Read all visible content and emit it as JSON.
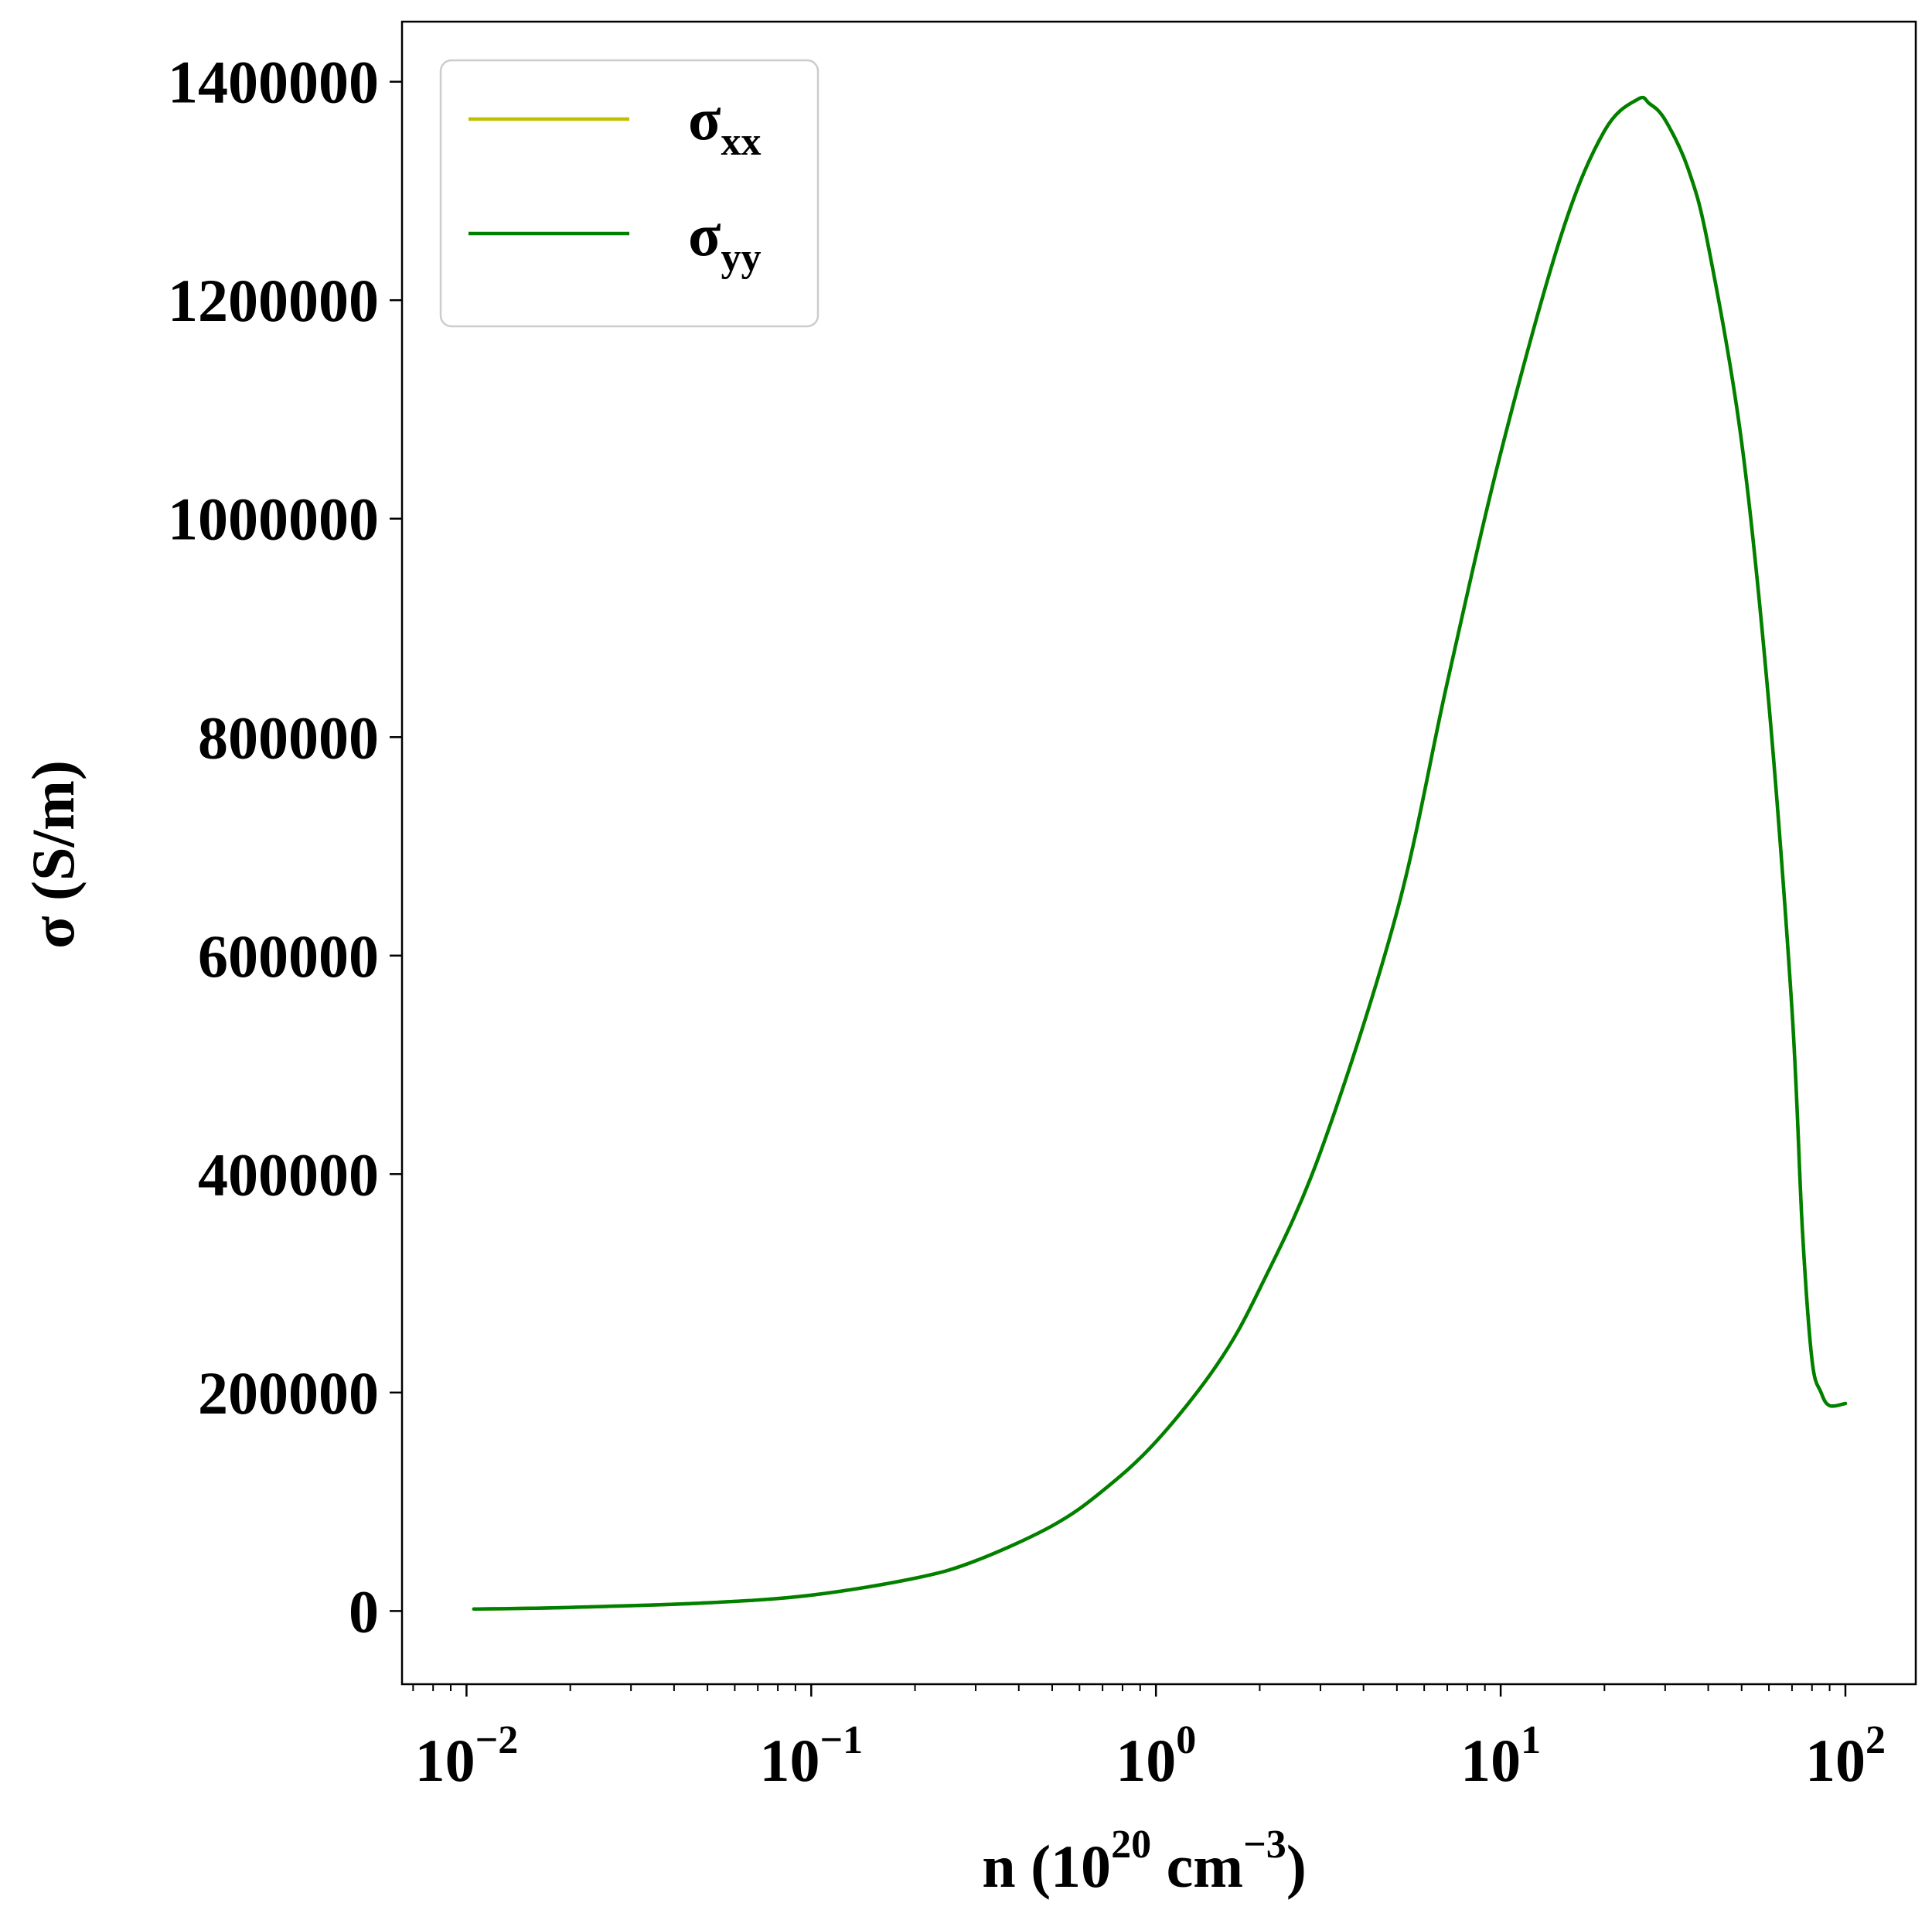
{
  "chart_data": {
    "type": "line",
    "title": "",
    "xlabel": {
      "base": "n (10",
      "sup1": "20",
      "mid": " cm",
      "sup2": "−3",
      "end": ")"
    },
    "ylabel": "σ (S/m)",
    "xscale": "log",
    "xlim": [
      0.0065,
      160
    ],
    "ylim": [
      -67000,
      1455000
    ],
    "x_ticks": [
      {
        "value": 0.01,
        "base": "10",
        "exp": "−2"
      },
      {
        "value": 0.1,
        "base": "10",
        "exp": "−1"
      },
      {
        "value": 1,
        "base": "10",
        "exp": "0"
      },
      {
        "value": 10,
        "base": "10",
        "exp": "1"
      },
      {
        "value": 100,
        "base": "10",
        "exp": "2"
      }
    ],
    "y_ticks": [
      {
        "value": 0,
        "label": "0"
      },
      {
        "value": 200000,
        "label": "200000"
      },
      {
        "value": 400000,
        "label": "400000"
      },
      {
        "value": 600000,
        "label": "600000"
      },
      {
        "value": 800000,
        "label": "800000"
      },
      {
        "value": 1000000,
        "label": "1000000"
      },
      {
        "value": 1200000,
        "label": "1200000"
      },
      {
        "value": 1400000,
        "label": "1400000"
      }
    ],
    "grid": false,
    "legend": "top-left",
    "series": [
      {
        "name": "σxx",
        "name_base": "σ",
        "name_sub": "xx",
        "color": "#bfbf00",
        "x": [
          0.0105,
          0.02,
          0.05,
          0.1,
          0.2,
          0.3,
          0.5,
          0.7,
          1.0,
          1.5,
          2.0,
          3.0,
          5.0,
          7.0,
          10.0,
          15.0,
          20.0,
          25.0,
          27.0,
          30.0,
          35.0,
          40.0,
          50.0,
          60.0,
          70.0,
          75.0,
          80.0,
          85.0,
          90.0,
          100.0
        ],
        "y": [
          1800,
          3300,
          7500,
          14500,
          30000,
          46000,
          78000,
          110000,
          155000,
          225000,
          295000,
          420000,
          640000,
          850000,
          1060000,
          1260000,
          1355000,
          1384000,
          1380000,
          1365000,
          1320000,
          1250000,
          1070000,
          830000,
          550000,
          350000,
          230000,
          200000,
          188000,
          190000
        ]
      },
      {
        "name": "σyy",
        "name_base": "σ",
        "name_sub": "yy",
        "color": "#008000",
        "x": [
          0.0105,
          0.02,
          0.05,
          0.1,
          0.2,
          0.3,
          0.5,
          0.7,
          1.0,
          1.5,
          2.0,
          3.0,
          5.0,
          7.0,
          10.0,
          15.0,
          20.0,
          25.0,
          27.0,
          30.0,
          35.0,
          40.0,
          50.0,
          60.0,
          70.0,
          75.0,
          80.0,
          85.0,
          90.0,
          100.0
        ],
        "y": [
          1800,
          3300,
          7500,
          14500,
          30000,
          46000,
          78000,
          110000,
          155000,
          225000,
          295000,
          420000,
          640000,
          850000,
          1060000,
          1260000,
          1355000,
          1384000,
          1380000,
          1365000,
          1320000,
          1250000,
          1070000,
          830000,
          550000,
          350000,
          230000,
          200000,
          188000,
          190000
        ]
      }
    ]
  }
}
